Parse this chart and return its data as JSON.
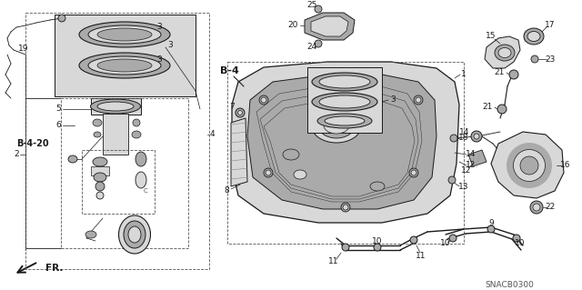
{
  "bg": "#ffffff",
  "lc": "#1a1a1a",
  "gray1": "#d8d8d8",
  "gray2": "#aaaaaa",
  "gray3": "#888888",
  "gray4": "#555555",
  "watermark": "SNACB0300",
  "b4_label": "B-4",
  "b420_label": "B-4-20",
  "fr_label": "FR."
}
